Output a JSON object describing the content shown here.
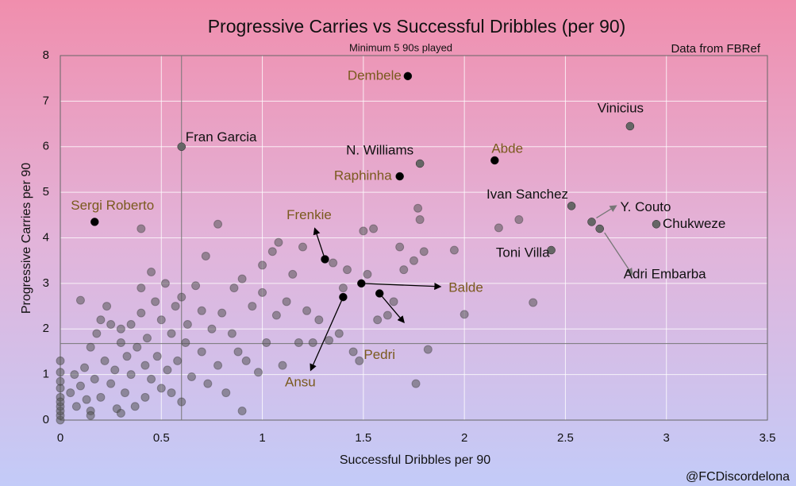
{
  "chart_data": {
    "type": "scatter",
    "title": "Progressive Carries vs Successful Dribbles (per 90)",
    "subtitle": "Minimum 5 90s played",
    "source": "Data from FBRef",
    "credit": "@FCDiscordelona",
    "x_label": "Successful Dribbles per 90",
    "y_label": "Progressive Carries per 90",
    "xlim": [
      0,
      3.5
    ],
    "ylim": [
      0,
      8
    ],
    "xticks": [
      0,
      0.5,
      1,
      1.5,
      2,
      2.5,
      3,
      3.5
    ],
    "yticks": [
      0,
      1,
      2,
      3,
      4,
      5,
      6,
      7,
      8
    ],
    "grid": true,
    "reference_lines": {
      "x": 0.6,
      "y": 1.68
    },
    "color": "#555555",
    "x": [
      0,
      0,
      0,
      0,
      0,
      0,
      0,
      0,
      0,
      0,
      0.05,
      0.07,
      0.08,
      0.1,
      0.1,
      0.12,
      0.13,
      0.15,
      0.15,
      0.17,
      0.18,
      0.2,
      0.2,
      0.22,
      0.23,
      0.25,
      0.27,
      0.28,
      0.3,
      0.3,
      0.32,
      0.33,
      0.35,
      0.35,
      0.37,
      0.38,
      0.4,
      0.4,
      0.42,
      0.42,
      0.43,
      0.45,
      0.45,
      0.47,
      0.48,
      0.5,
      0.5,
      0.52,
      0.53,
      0.55,
      0.55,
      0.57,
      0.58,
      0.6,
      0.62,
      0.63,
      0.65,
      0.67,
      0.7,
      0.7,
      0.72,
      0.73,
      0.75,
      0.78,
      0.78,
      0.8,
      0.82,
      0.85,
      0.86,
      0.88,
      0.9,
      0.92,
      0.95,
      0.98,
      1.0,
      1.0,
      1.02,
      1.05,
      1.07,
      1.08,
      1.1,
      1.12,
      1.15,
      1.18,
      1.2,
      1.22,
      1.25,
      1.28,
      1.33,
      1.35,
      1.38,
      1.4,
      1.42,
      1.45,
      1.48,
      1.5,
      1.52,
      1.55,
      1.57,
      1.62,
      1.65,
      1.68,
      1.7,
      1.75,
      1.77,
      1.78,
      1.8,
      1.82,
      1.76,
      1.95,
      2.0,
      2.17,
      2.27,
      2.34,
      0.4,
      0.25,
      0.15,
      0.6,
      0.3,
      0.9
    ],
    "y": [
      0,
      0.1,
      0.2,
      0.3,
      0.5,
      0.7,
      0.85,
      1.05,
      1.3,
      0.4,
      0.6,
      1.0,
      0.3,
      0.75,
      2.63,
      1.15,
      0.45,
      0.2,
      1.6,
      0.9,
      1.9,
      2.2,
      0.5,
      1.3,
      2.5,
      0.8,
      1.1,
      0.25,
      1.7,
      2.0,
      0.6,
      1.4,
      2.1,
      1.0,
      0.3,
      1.6,
      2.9,
      2.35,
      0.5,
      1.2,
      1.8,
      3.25,
      0.9,
      2.6,
      1.4,
      0.7,
      2.2,
      3.0,
      1.1,
      1.9,
      0.6,
      2.5,
      1.3,
      2.7,
      1.7,
      2.1,
      0.95,
      2.95,
      2.4,
      1.5,
      3.6,
      0.8,
      2.0,
      4.3,
      1.2,
      2.35,
      0.6,
      1.9,
      2.9,
      1.5,
      3.1,
      1.3,
      2.5,
      1.05,
      3.4,
      2.8,
      1.7,
      3.7,
      2.3,
      3.9,
      1.2,
      2.6,
      3.2,
      1.7,
      3.8,
      2.4,
      1.7,
      2.2,
      1.75,
      3.45,
      1.9,
      2.9,
      3.3,
      1.5,
      1.3,
      4.15,
      3.2,
      4.2,
      2.2,
      2.3,
      2.6,
      3.8,
      3.3,
      3.5,
      4.65,
      4.4,
      3.7,
      1.55,
      0.8,
      3.73,
      2.32,
      4.22,
      4.4,
      2.58,
      4.2,
      2.1,
      0.1,
      0.4,
      0.15,
      0.2
    ],
    "highlights": [
      {
        "label": "Dembele",
        "x": 1.72,
        "y": 7.55,
        "color": "#000000",
        "label_color": "#7a5a1e"
      },
      {
        "label": "Vinicius",
        "x": 2.82,
        "y": 6.45,
        "color": "#666666",
        "label_color": "#111111"
      },
      {
        "label": "Fran Garcia",
        "x": 0.6,
        "y": 6.0,
        "color": "#666666",
        "label_color": "#111111"
      },
      {
        "label": "N. Williams",
        "x": 1.78,
        "y": 5.63,
        "color": "#666666",
        "label_color": "#111111"
      },
      {
        "label": "Abde",
        "x": 2.15,
        "y": 5.7,
        "color": "#000000",
        "label_color": "#7a5a1e"
      },
      {
        "label": "Raphinha",
        "x": 1.68,
        "y": 5.35,
        "color": "#000000",
        "label_color": "#7a5a1e"
      },
      {
        "label": "Ivan Sanchez",
        "x": 2.53,
        "y": 4.7,
        "color": "#666666",
        "label_color": "#111111"
      },
      {
        "label": "Y. Couto",
        "x": 2.63,
        "y": 4.35,
        "color": "#666666",
        "label_color": "#111111"
      },
      {
        "label": "Chukweze",
        "x": 2.95,
        "y": 4.3,
        "color": "#666666",
        "label_color": "#111111"
      },
      {
        "label": "Sergi Roberto",
        "x": 0.17,
        "y": 4.35,
        "color": "#000000",
        "label_color": "#7a5a1e"
      },
      {
        "label": "Toni Villa",
        "x": 2.43,
        "y": 3.73,
        "color": "#666666",
        "label_color": "#111111"
      },
      {
        "label": "Adri Embarba",
        "x": 2.67,
        "y": 4.2,
        "color": "#666666",
        "label_color": "#111111"
      },
      {
        "label": "Frenkie",
        "x": 1.31,
        "y": 3.53,
        "color": "#000000",
        "label_color": "#7a5a1e"
      },
      {
        "label": "Balde",
        "x": 1.49,
        "y": 3.0,
        "color": "#000000",
        "label_color": "#7a5a1e"
      },
      {
        "label": "Pedri",
        "x": 1.58,
        "y": 2.78,
        "color": "#000000",
        "label_color": "#7a5a1e"
      },
      {
        "label": "Ansu",
        "x": 1.4,
        "y": 2.7,
        "color": "#000000",
        "label_color": "#7a5a1e"
      }
    ]
  }
}
